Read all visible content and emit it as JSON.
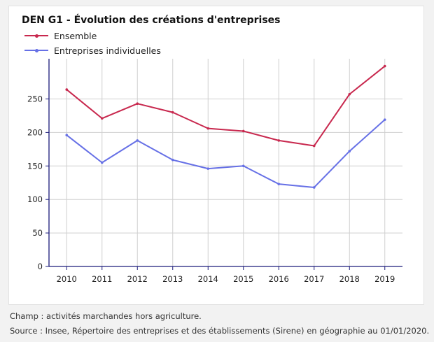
{
  "header": {
    "title": "DEN G1 - Évolution des créations d'entreprises"
  },
  "legend": [
    {
      "label": "Ensemble",
      "color": "#c8284e"
    },
    {
      "label": "Entreprises individuelles",
      "color": "#6670e6"
    }
  ],
  "notes": {
    "champ": "Champ : activités marchandes hors agriculture.",
    "source": "Source : Insee, Répertoire des entreprises et des établissements (Sirene) en géographie au 01/01/2020."
  },
  "chart_data": {
    "type": "line",
    "title": "DEN G1 - Évolution des créations d'entreprises",
    "xlabel": "",
    "ylabel": "",
    "categories": [
      "2010",
      "2011",
      "2012",
      "2013",
      "2014",
      "2015",
      "2016",
      "2017",
      "2018",
      "2019"
    ],
    "y_ticks": [
      0,
      50,
      100,
      150,
      200,
      250
    ],
    "ylim": [
      0,
      310
    ],
    "grid": true,
    "legend_position": "top-left",
    "series": [
      {
        "name": "Ensemble",
        "color": "#c8284e",
        "values": [
          264,
          221,
          243,
          230,
          206,
          202,
          188,
          180,
          257,
          299
        ]
      },
      {
        "name": "Entreprises individuelles",
        "color": "#6670e6",
        "values": [
          196,
          155,
          188,
          159,
          146,
          150,
          123,
          118,
          172,
          219
        ]
      }
    ]
  }
}
